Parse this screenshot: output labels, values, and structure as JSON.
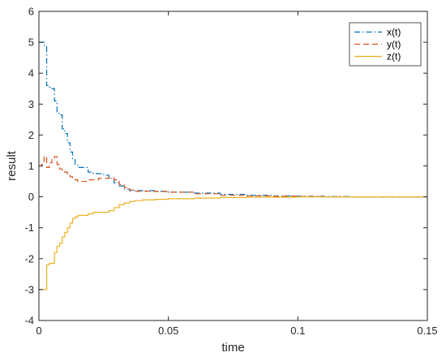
{
  "chart_data": {
    "type": "line",
    "title": "",
    "xlabel": "time",
    "ylabel": "result",
    "xlim": [
      0,
      0.15
    ],
    "ylim": [
      -4,
      6
    ],
    "xticks": [
      0,
      0.05,
      0.1,
      0.15
    ],
    "xtick_labels": [
      "0",
      "0.05",
      "0.1",
      "0.15"
    ],
    "yticks": [
      -4,
      -3,
      -2,
      -1,
      0,
      1,
      2,
      3,
      4,
      5,
      6
    ],
    "ytick_labels": [
      "-4",
      "-3",
      "-2",
      "-1",
      "0",
      "1",
      "2",
      "3",
      "4",
      "5",
      "6"
    ],
    "grid": false,
    "legend_position": "top-right",
    "series": [
      {
        "name": "x(t)",
        "color": "#0072BD",
        "style": "dash-dot",
        "x": [
          0,
          0.001,
          0.002,
          0.003,
          0.004,
          0.005,
          0.006,
          0.007,
          0.008,
          0.009,
          0.01,
          0.011,
          0.012,
          0.013,
          0.014,
          0.015,
          0.017,
          0.019,
          0.021,
          0.023,
          0.025,
          0.027,
          0.029,
          0.031,
          0.033,
          0.035,
          0.037,
          0.04,
          0.045,
          0.05,
          0.06,
          0.07,
          0.08,
          0.09,
          0.1,
          0.11,
          0.12,
          0.13,
          0.14,
          0.15
        ],
        "y": [
          5.0,
          5.0,
          4.9,
          3.6,
          3.55,
          3.5,
          3.1,
          2.7,
          2.65,
          2.2,
          2.05,
          1.75,
          1.45,
          1.2,
          1.05,
          0.95,
          0.95,
          0.8,
          0.75,
          0.75,
          0.7,
          0.6,
          0.45,
          0.35,
          0.25,
          0.2,
          0.2,
          0.2,
          0.18,
          0.15,
          0.12,
          0.08,
          0.05,
          0.03,
          0.02,
          0.01,
          0.0,
          0.0,
          0.0,
          0.0
        ]
      },
      {
        "name": "y(t)",
        "color": "#D95319",
        "style": "dash",
        "x": [
          0,
          0.001,
          0.002,
          0.003,
          0.004,
          0.005,
          0.006,
          0.007,
          0.008,
          0.009,
          0.01,
          0.011,
          0.012,
          0.013,
          0.014,
          0.015,
          0.017,
          0.019,
          0.021,
          0.023,
          0.025,
          0.027,
          0.029,
          0.031,
          0.033,
          0.035,
          0.037,
          0.04,
          0.045,
          0.05,
          0.06,
          0.07,
          0.08,
          0.09,
          0.1,
          0.11,
          0.12,
          0.13,
          0.14,
          0.15
        ],
        "y": [
          1.0,
          1.05,
          1.3,
          0.95,
          1.1,
          1.25,
          1.3,
          1.05,
          0.9,
          0.85,
          0.8,
          0.7,
          0.65,
          0.6,
          0.55,
          0.5,
          0.5,
          0.55,
          0.55,
          0.6,
          0.6,
          0.62,
          0.55,
          0.4,
          0.3,
          0.22,
          0.18,
          0.18,
          0.17,
          0.15,
          0.1,
          0.05,
          0.03,
          0.02,
          0.01,
          0.0,
          0.0,
          0.0,
          0.0,
          0.0
        ]
      },
      {
        "name": "z(t)",
        "color": "#EDB120",
        "style": "solid",
        "x": [
          0,
          0.001,
          0.002,
          0.003,
          0.004,
          0.005,
          0.006,
          0.007,
          0.008,
          0.009,
          0.01,
          0.011,
          0.012,
          0.013,
          0.014,
          0.015,
          0.017,
          0.019,
          0.021,
          0.023,
          0.025,
          0.027,
          0.029,
          0.031,
          0.033,
          0.035,
          0.037,
          0.04,
          0.045,
          0.05,
          0.06,
          0.07,
          0.08,
          0.09,
          0.1,
          0.11,
          0.12,
          0.13,
          0.14,
          0.15
        ],
        "y": [
          -3.0,
          -3.0,
          -3.0,
          -2.2,
          -2.15,
          -2.15,
          -1.8,
          -1.6,
          -1.5,
          -1.3,
          -1.15,
          -1.0,
          -0.85,
          -0.7,
          -0.65,
          -0.6,
          -0.6,
          -0.55,
          -0.5,
          -0.5,
          -0.5,
          -0.45,
          -0.35,
          -0.25,
          -0.2,
          -0.15,
          -0.12,
          -0.1,
          -0.08,
          -0.06,
          -0.04,
          -0.02,
          -0.01,
          -0.01,
          0.0,
          0.0,
          0.0,
          0.0,
          0.0,
          0.0
        ]
      }
    ]
  }
}
